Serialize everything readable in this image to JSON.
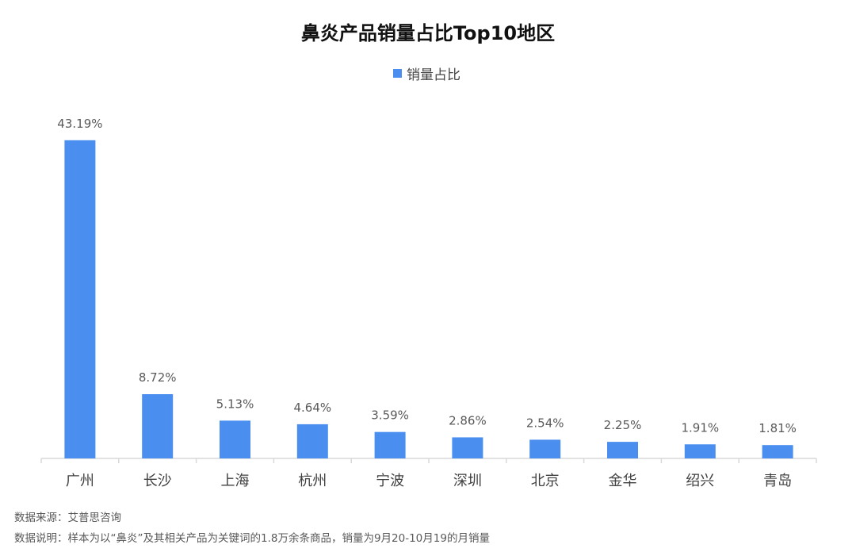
{
  "title": "鼻炎产品销量占比Top10地区",
  "colors": {
    "bar": "#4a8ff0",
    "axis": "#d9d9d9",
    "label": "#595959"
  },
  "chart_data": {
    "type": "bar",
    "title": "鼻炎产品销量占比Top10地区",
    "xlabel": "",
    "ylabel": "",
    "ylim": [
      0,
      45
    ],
    "grid": false,
    "legend": "top-center",
    "categories": [
      "广州",
      "长沙",
      "上海",
      "杭州",
      "宁波",
      "深圳",
      "北京",
      "金华",
      "绍兴",
      "青岛"
    ],
    "series": [
      {
        "name": "销量占比",
        "values": [
          43.19,
          8.72,
          5.13,
          4.64,
          3.59,
          2.86,
          2.54,
          2.25,
          1.91,
          1.81
        ],
        "labels": [
          "43.19%",
          "8.72%",
          "5.13%",
          "4.64%",
          "3.59%",
          "2.86%",
          "2.54%",
          "2.25%",
          "1.91%",
          "1.81%"
        ]
      }
    ]
  },
  "footer": {
    "source": "数据来源：艾普思咨询",
    "note": "数据说明：样本为以“鼻炎”及其相关产品为关键词的1.8万余条商品，销量为9月20-10月19的月销量"
  }
}
